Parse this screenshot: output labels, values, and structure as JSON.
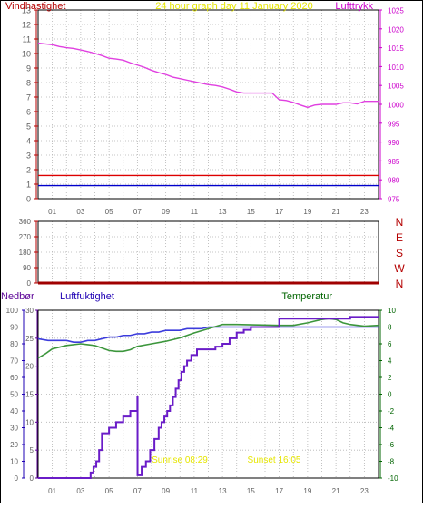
{
  "title": "24 hour graph day  11 January 2020",
  "colors": {
    "background": "#ffffff",
    "frame": "#000000",
    "grid": "#b4b4b4",
    "wind_label": "#b40000",
    "pressure_label": "#cc00cc",
    "title": "#e6e600",
    "dir_label": "#b40000",
    "rain_label": "#5a0096",
    "humidity_label": "#1e00b4",
    "temp_label": "#006400",
    "tick_text": "#606060"
  },
  "x_ticks": [
    "01",
    "03",
    "05",
    "07",
    "09",
    "11",
    "13",
    "15",
    "17",
    "19",
    "21",
    "23"
  ],
  "chart_data": [
    {
      "type": "line",
      "title": "24 hour graph day  11 January 2020",
      "ylabel": "Vindhastighet",
      "y2label": "Lufttrykk",
      "ylim": [
        0,
        13
      ],
      "y2lim": [
        975,
        1025
      ],
      "y_ticks": [
        0,
        1,
        2,
        3,
        4,
        5,
        6,
        7,
        8,
        9,
        10,
        11,
        12,
        13
      ],
      "y2_ticks": [
        975,
        980,
        985,
        990,
        995,
        1000,
        1005,
        1010,
        1015,
        1020,
        1025
      ],
      "xlim": [
        0,
        24
      ],
      "grid": true,
      "series": [
        {
          "name": "Lufttrykk",
          "color": "#e040e0",
          "axis": "right",
          "x": [
            0,
            1,
            1.5,
            2,
            2.5,
            3,
            3.5,
            4,
            4.5,
            5,
            5.5,
            6,
            6.5,
            7,
            7.5,
            8,
            8.5,
            9,
            9.5,
            10,
            10.5,
            11,
            11.5,
            12,
            12.5,
            13,
            13.5,
            14,
            14.5,
            15,
            15.5,
            16,
            16.5,
            17,
            17.5,
            18,
            18.5,
            19,
            19.5,
            20,
            20.5,
            21,
            21.5,
            22,
            22.5,
            23,
            23.5,
            24
          ],
          "values": [
            1016.2,
            1015.8,
            1015.3,
            1015.0,
            1014.8,
            1014.4,
            1014.0,
            1013.5,
            1012.9,
            1012.2,
            1012.0,
            1011.7,
            1011.0,
            1010.4,
            1009.8,
            1009.0,
            1008.4,
            1007.9,
            1007.2,
            1006.8,
            1006.4,
            1006.0,
            1005.6,
            1005.2,
            1005.0,
            1004.6,
            1004.0,
            1003.3,
            1003.0,
            1003.0,
            1003.0,
            1003.0,
            1003.0,
            1001.2,
            1001.0,
            1000.5,
            999.8,
            999.2,
            999.8,
            1000.0,
            1000.0,
            1000.0,
            1000.4,
            1000.4,
            1000.1,
            1000.8,
            1000.8,
            1000.8
          ]
        },
        {
          "name": "",
          "color": "#dd0000",
          "axis": "left",
          "x": [
            0,
            24
          ],
          "values": [
            1.6,
            1.6
          ]
        },
        {
          "name": "",
          "color": "#0000cc",
          "axis": "left",
          "x": [
            0,
            24
          ],
          "values": [
            0.9,
            0.9
          ]
        }
      ]
    },
    {
      "type": "line",
      "ylim": [
        0,
        360
      ],
      "xlim": [
        0,
        24
      ],
      "y_ticks": [
        0,
        90,
        180,
        270,
        360
      ],
      "y_tick_labels": [
        "0",
        "90",
        "180",
        "270",
        "360"
      ],
      "dir_labels": [
        "N",
        "W",
        "S",
        "E",
        "N"
      ],
      "grid": true,
      "series": [
        {
          "name": "",
          "color": "#a00000",
          "x": [
            0,
            24
          ],
          "values": [
            0,
            0
          ]
        }
      ]
    },
    {
      "type": "line",
      "ylabel_rain": "Nedbør",
      "ylabel_humidity": "Luftfuktighet",
      "y2label": "Temperatur",
      "ylim_rain": [
        0,
        30
      ],
      "ylim_humidity": [
        0,
        100
      ],
      "y2lim": [
        -10,
        10
      ],
      "rain_ticks": [
        0,
        5,
        10,
        15,
        20,
        25,
        30
      ],
      "humidity_ticks": [
        0,
        10,
        20,
        30,
        40,
        50,
        60,
        70,
        80,
        90,
        100
      ],
      "temp_ticks": [
        -10,
        -8,
        -6,
        -4,
        -2,
        0,
        2,
        4,
        6,
        8,
        10
      ],
      "xlim": [
        0,
        24
      ],
      "grid": true,
      "series": [
        {
          "name": "Luftfuktighet",
          "color": "#3c3cdc",
          "axis": "humidity",
          "x": [
            0,
            0.7,
            1.5,
            2,
            2.5,
            3,
            3.5,
            4,
            4.5,
            5,
            5.5,
            6,
            6.5,
            7,
            7.5,
            8,
            8.5,
            9,
            9.5,
            10,
            10.5,
            11,
            11.5,
            12,
            12.5,
            13,
            13.5,
            14,
            24
          ],
          "values": [
            83,
            82,
            82,
            82,
            81,
            81,
            82,
            82,
            83,
            84,
            84,
            85,
            85,
            86,
            86,
            87,
            87,
            88,
            88,
            88,
            89,
            89,
            89,
            90,
            90,
            90,
            90,
            90,
            90
          ]
        },
        {
          "name": "Temperatur",
          "color": "#3c963c",
          "axis": "temp",
          "x": [
            0,
            0.5,
            1,
            1.5,
            2,
            3,
            3.5,
            4,
            4.5,
            5,
            5.5,
            6,
            6.5,
            7,
            8,
            9,
            10,
            11,
            12,
            13,
            14,
            17,
            18,
            19,
            19.5,
            20,
            20.5,
            21,
            21.5,
            22,
            23,
            24
          ],
          "values": [
            4.3,
            4.8,
            5.4,
            5.6,
            5.8,
            6.0,
            5.9,
            5.8,
            5.5,
            5.2,
            5.1,
            5.1,
            5.3,
            5.7,
            6.0,
            6.3,
            6.7,
            7.3,
            7.8,
            8.3,
            8.3,
            8.2,
            8.2,
            8.5,
            8.7,
            8.9,
            9.0,
            8.9,
            8.5,
            8.3,
            8.1,
            8.2
          ]
        },
        {
          "name": "Nedbør",
          "color": "#6a1cc8",
          "axis": "rain",
          "step": true,
          "x": [
            0,
            3.5,
            3.7,
            3.9,
            4.1,
            4.3,
            4.5,
            5,
            5.5,
            6,
            6.5,
            7,
            7.01,
            7.3,
            7.6,
            7.9,
            8.2,
            8.5,
            8.7,
            8.9,
            9.1,
            9.3,
            9.5,
            9.7,
            9.9,
            10.1,
            10.3,
            10.5,
            10.8,
            11.2,
            11.5,
            11.8,
            12.2,
            12.5,
            13,
            13.5,
            14,
            14.5,
            15,
            16,
            17,
            21.5,
            22,
            24
          ],
          "values": [
            0,
            0,
            1,
            2,
            3,
            5,
            8,
            9,
            10,
            11,
            12,
            14.5,
            0.5,
            2,
            3,
            5,
            7,
            9,
            10,
            11,
            12,
            13,
            14.5,
            16,
            17.5,
            19,
            20,
            21,
            22,
            23,
            23,
            23,
            23,
            23.5,
            24,
            25,
            26,
            26.5,
            27,
            27,
            28.5,
            28.5,
            28.8,
            28.8
          ]
        }
      ],
      "annotations": [
        "Sunrise 08:29",
        "Sunset 16:05"
      ]
    }
  ]
}
